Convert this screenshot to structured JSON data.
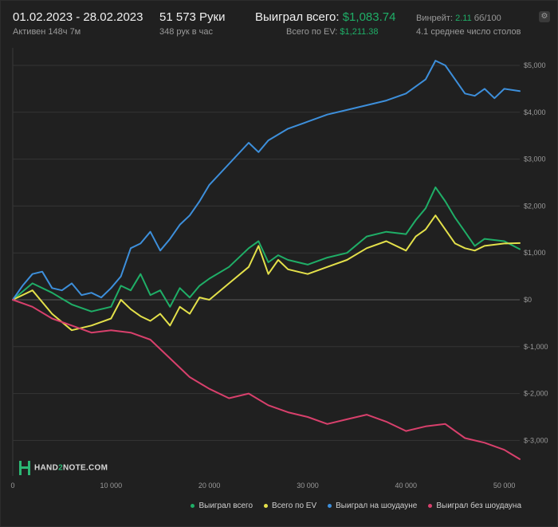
{
  "header": {
    "date_range": "01.02.2023 - 28.02.2023",
    "active": "Активен 148ч 7м",
    "hands": "51 573 Руки",
    "hands_per_hour": "348 рук в час",
    "won_label": "Выиграл всего:",
    "won_value": "$1,083.74",
    "ev_label": "Всего по EV:",
    "ev_value": "$1,211.38",
    "winrate_label": "Винрейт:",
    "winrate_value": "2.11",
    "winrate_unit": "бб/100",
    "tables": "4.1 среднее число столов"
  },
  "logo": {
    "left": "HAND",
    "mid": "2",
    "right": "NOTE.COM"
  },
  "colors": {
    "green": "#1fae67",
    "yellow": "#e3e04a",
    "blue": "#3d8fdb",
    "pink": "#d8406c",
    "grid": "#3a3a3a"
  },
  "chart_data": {
    "type": "line",
    "xlim": [
      0,
      51573
    ],
    "ylim": [
      -3500,
      5300
    ],
    "x_ticks": [
      0,
      10000,
      20000,
      30000,
      40000,
      50000
    ],
    "x_tick_labels": [
      "0",
      "10 000",
      "20 000",
      "30 000",
      "40 000",
      "50 000"
    ],
    "y_ticks": [
      5000,
      4000,
      3000,
      2000,
      1000,
      0,
      -1000,
      -2000,
      -3000
    ],
    "y_tick_labels": [
      "$5,000",
      "$4,000",
      "$3,000",
      "$2,000",
      "$1,000",
      "$0",
      "$-1,000",
      "$-2,000",
      "$-3,000"
    ],
    "legend_position": "bottom-right",
    "series": [
      {
        "name": "Выиграл всего",
        "color": "#1fae67",
        "x": [
          0,
          2000,
          4000,
          6000,
          8000,
          10000,
          11000,
          12000,
          13000,
          14000,
          15000,
          16000,
          17000,
          18000,
          19000,
          20000,
          22000,
          24000,
          25000,
          26000,
          27000,
          28000,
          30000,
          32000,
          34000,
          36000,
          38000,
          40000,
          41000,
          42000,
          43000,
          44000,
          45000,
          46000,
          47000,
          48000,
          50000,
          51573
        ],
        "y": [
          0,
          350,
          150,
          -100,
          -250,
          -150,
          300,
          200,
          550,
          100,
          200,
          -150,
          250,
          50,
          300,
          450,
          700,
          1100,
          1250,
          800,
          950,
          850,
          750,
          900,
          1000,
          1350,
          1450,
          1400,
          1700,
          1950,
          2400,
          2100,
          1750,
          1450,
          1150,
          1300,
          1250,
          1080
        ]
      },
      {
        "name": "Всего по EV",
        "color": "#e3e04a",
        "x": [
          0,
          2000,
          4000,
          6000,
          8000,
          10000,
          11000,
          12000,
          13000,
          14000,
          15000,
          16000,
          17000,
          18000,
          19000,
          20000,
          22000,
          24000,
          25000,
          26000,
          27000,
          28000,
          30000,
          32000,
          34000,
          36000,
          38000,
          40000,
          41000,
          42000,
          43000,
          44000,
          45000,
          46000,
          47000,
          48000,
          50000,
          51573
        ],
        "y": [
          0,
          200,
          -300,
          -650,
          -550,
          -400,
          0,
          -200,
          -350,
          -450,
          -300,
          -550,
          -150,
          -300,
          50,
          0,
          350,
          700,
          1150,
          550,
          850,
          650,
          550,
          700,
          850,
          1100,
          1250,
          1050,
          1350,
          1500,
          1800,
          1500,
          1200,
          1100,
          1050,
          1150,
          1200,
          1210
        ]
      },
      {
        "name": "Выиграл на шоудауне",
        "color": "#3d8fdb",
        "x": [
          0,
          1000,
          2000,
          3000,
          4000,
          5000,
          6000,
          7000,
          8000,
          9000,
          10000,
          11000,
          12000,
          13000,
          14000,
          15000,
          16000,
          17000,
          18000,
          19000,
          20000,
          22000,
          24000,
          25000,
          26000,
          28000,
          30000,
          32000,
          34000,
          36000,
          38000,
          40000,
          42000,
          43000,
          44000,
          45000,
          46000,
          47000,
          48000,
          49000,
          50000,
          51573
        ],
        "y": [
          0,
          300,
          550,
          600,
          250,
          200,
          350,
          100,
          150,
          50,
          250,
          500,
          1100,
          1200,
          1450,
          1050,
          1300,
          1600,
          1800,
          2100,
          2450,
          2900,
          3350,
          3150,
          3400,
          3650,
          3800,
          3950,
          4050,
          4150,
          4250,
          4400,
          4700,
          5100,
          5000,
          4700,
          4400,
          4350,
          4500,
          4300,
          4500,
          4450
        ]
      },
      {
        "name": "Выиграл без шоудауна",
        "color": "#d8406c",
        "x": [
          0,
          2000,
          4000,
          6000,
          8000,
          10000,
          12000,
          14000,
          16000,
          18000,
          20000,
          22000,
          24000,
          26000,
          28000,
          30000,
          32000,
          34000,
          36000,
          38000,
          40000,
          42000,
          44000,
          46000,
          48000,
          50000,
          51573
        ],
        "y": [
          0,
          -150,
          -400,
          -550,
          -700,
          -650,
          -700,
          -850,
          -1250,
          -1650,
          -1900,
          -2100,
          -2000,
          -2250,
          -2400,
          -2500,
          -2650,
          -2550,
          -2450,
          -2600,
          -2800,
          -2700,
          -2650,
          -2950,
          -3050,
          -3200,
          -3400
        ]
      }
    ]
  }
}
